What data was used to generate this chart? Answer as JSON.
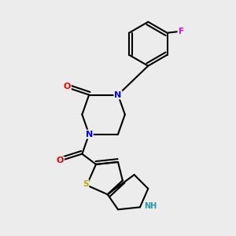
{
  "background_color": "#ececec",
  "atom_colors": {
    "N": "#0000ee",
    "O": "#ee0000",
    "S": "#bbaa00",
    "F": "#ee00ee",
    "NH": "#2299aa",
    "C": "#000000"
  },
  "bond_color": "#000000",
  "bond_width": 1.5
}
